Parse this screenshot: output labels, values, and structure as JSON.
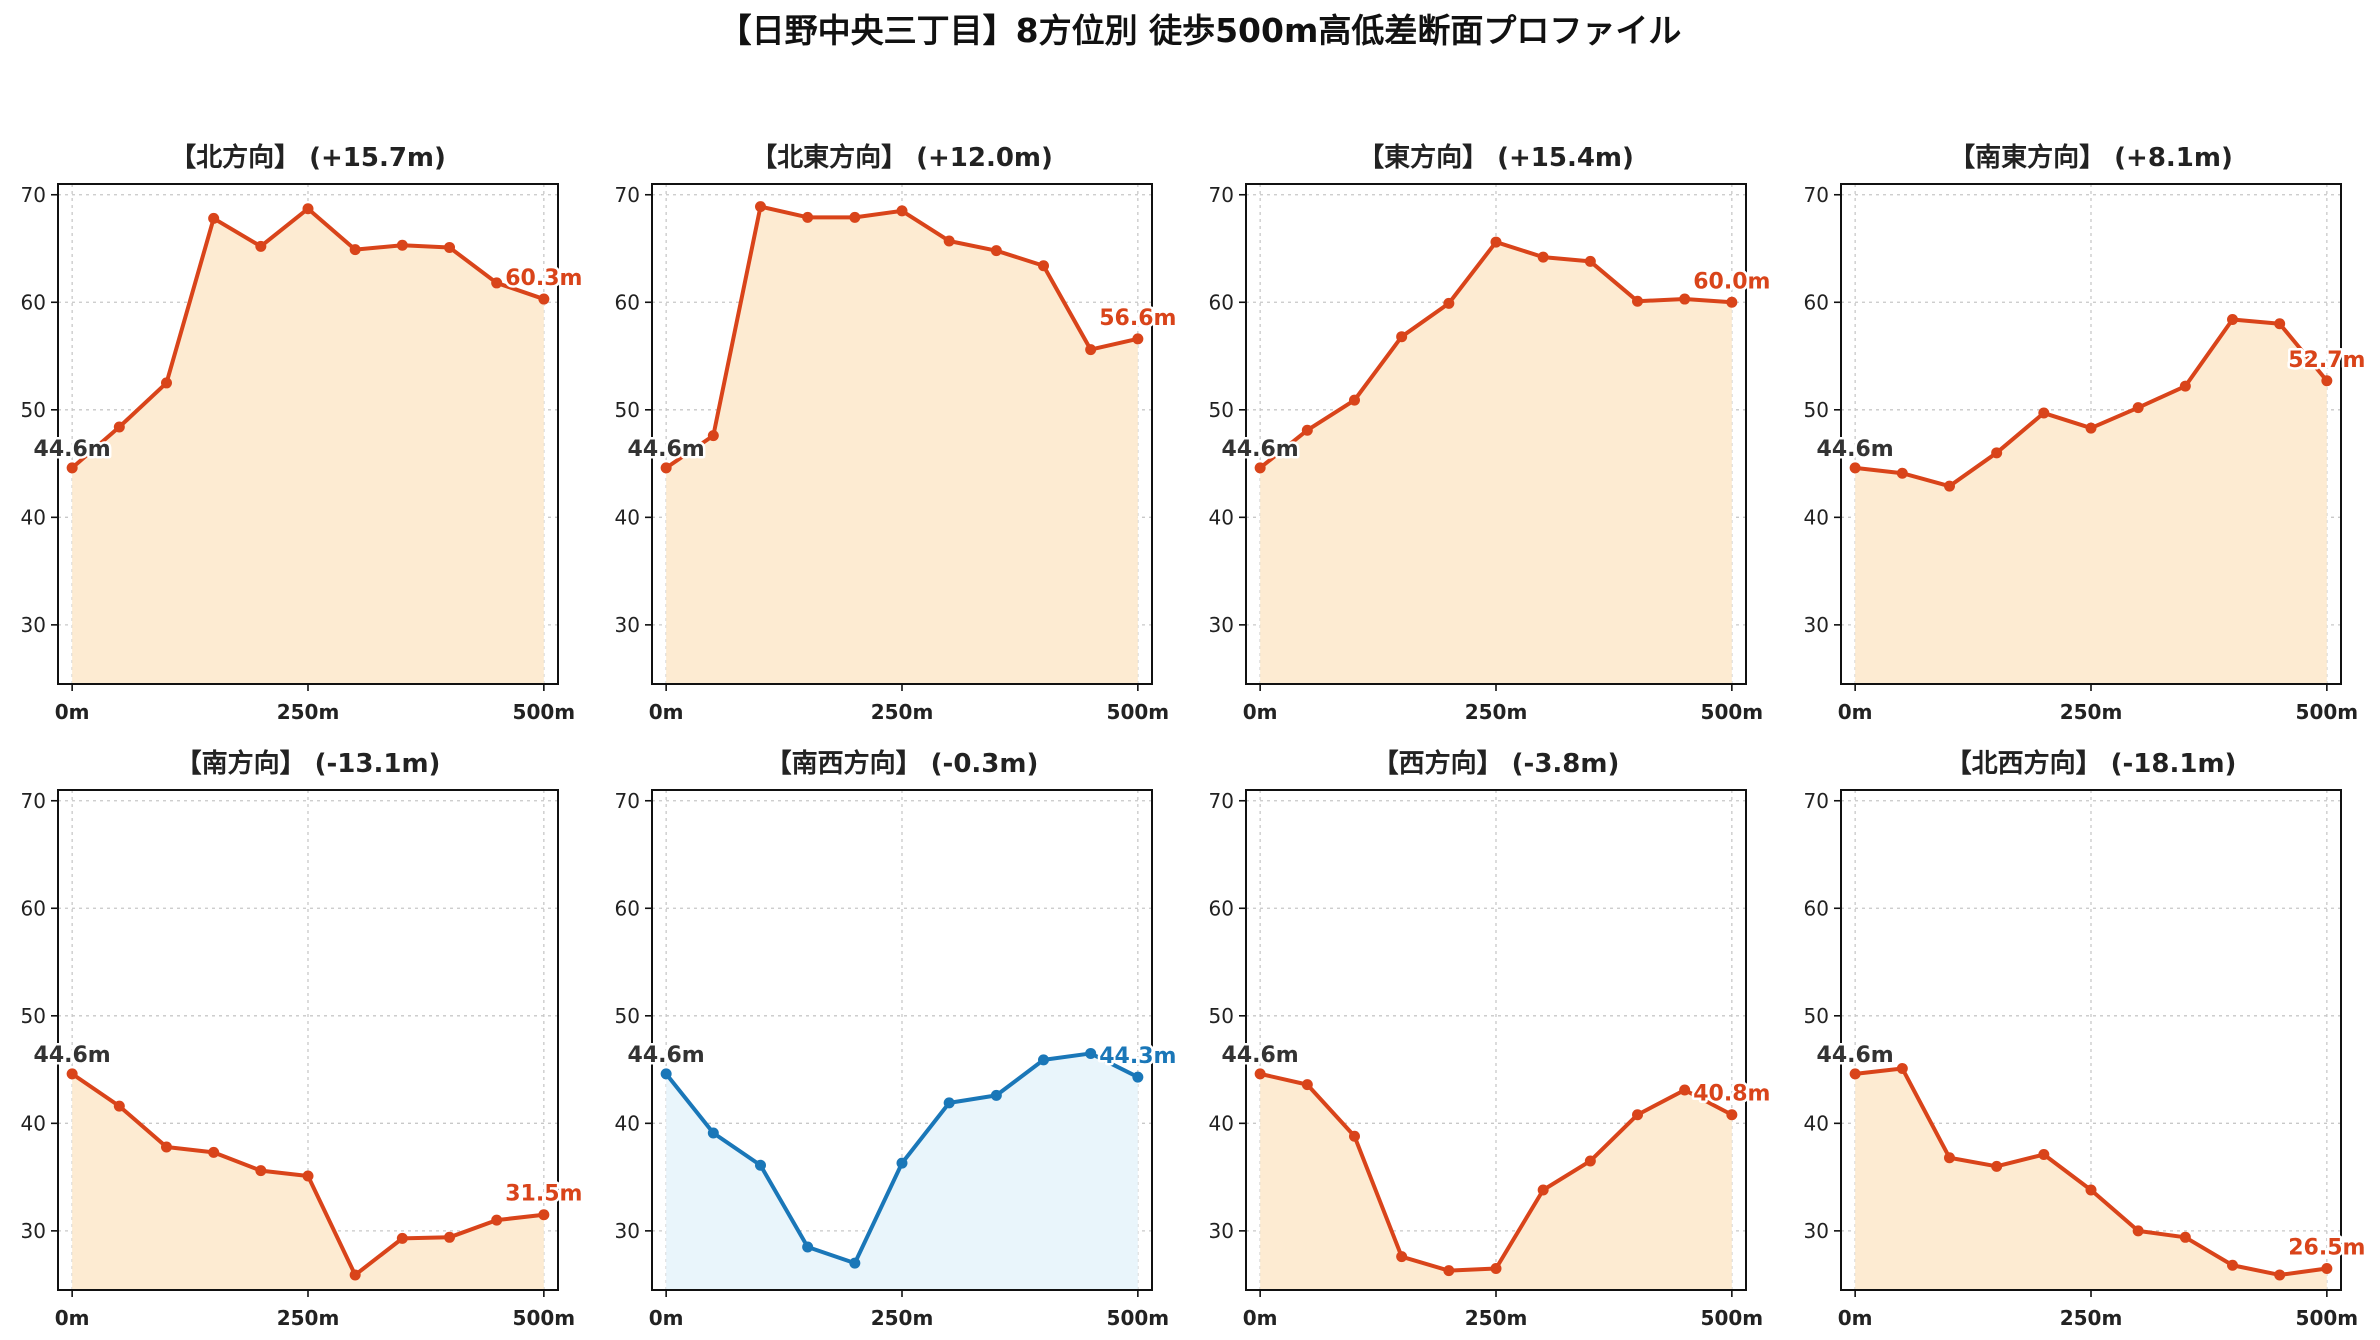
{
  "figure": {
    "title": "【日野中央三丁目】8方位別 徒歩500m高低差断面プロファイル"
  },
  "chart_data": [
    {
      "type": "line",
      "title": "【北方向】 (+15.7m)",
      "x": [
        0,
        50,
        100,
        150,
        200,
        250,
        300,
        350,
        400,
        450,
        500
      ],
      "values": [
        44.6,
        48.4,
        52.5,
        67.8,
        65.2,
        68.7,
        64.9,
        65.3,
        65.1,
        61.8,
        60.3
      ],
      "start_label": "44.6m",
      "end_label": "60.3m",
      "xticklabels": [
        "0m",
        "250m",
        "500m"
      ],
      "yticks": [
        30,
        40,
        50,
        60,
        70
      ],
      "xlim": [
        -15,
        515
      ],
      "ylim": [
        24.5,
        71
      ],
      "line_color": "#d9441a",
      "fill_color": "#fdebd2",
      "grid": true
    },
    {
      "type": "line",
      "title": "【北東方向】 (+12.0m)",
      "x": [
        0,
        50,
        100,
        150,
        200,
        250,
        300,
        350,
        400,
        450,
        500
      ],
      "values": [
        44.6,
        47.6,
        68.9,
        67.9,
        67.9,
        68.5,
        65.7,
        64.8,
        63.4,
        55.6,
        56.6
      ],
      "start_label": "44.6m",
      "end_label": "56.6m",
      "xticklabels": [
        "0m",
        "250m",
        "500m"
      ],
      "yticks": [
        30,
        40,
        50,
        60,
        70
      ],
      "xlim": [
        -15,
        515
      ],
      "ylim": [
        24.5,
        71
      ],
      "line_color": "#d9441a",
      "fill_color": "#fdebd2",
      "grid": true
    },
    {
      "type": "line",
      "title": "【東方向】 (+15.4m)",
      "x": [
        0,
        50,
        100,
        150,
        200,
        250,
        300,
        350,
        400,
        450,
        500
      ],
      "values": [
        44.6,
        48.1,
        50.9,
        56.8,
        59.9,
        65.6,
        64.2,
        63.8,
        60.1,
        60.3,
        60.0
      ],
      "start_label": "44.6m",
      "end_label": "60.0m",
      "xticklabels": [
        "0m",
        "250m",
        "500m"
      ],
      "yticks": [
        30,
        40,
        50,
        60,
        70
      ],
      "xlim": [
        -15,
        515
      ],
      "ylim": [
        24.5,
        71
      ],
      "line_color": "#d9441a",
      "fill_color": "#fdebd2",
      "grid": true
    },
    {
      "type": "line",
      "title": "【南東方向】 (+8.1m)",
      "x": [
        0,
        50,
        100,
        150,
        200,
        250,
        300,
        350,
        400,
        450,
        500
      ],
      "values": [
        44.6,
        44.1,
        42.9,
        46.0,
        49.7,
        48.3,
        50.2,
        52.2,
        58.4,
        58.0,
        52.7
      ],
      "start_label": "44.6m",
      "end_label": "52.7m",
      "xticklabels": [
        "0m",
        "250m",
        "500m"
      ],
      "yticks": [
        30,
        40,
        50,
        60,
        70
      ],
      "xlim": [
        -15,
        515
      ],
      "ylim": [
        24.5,
        71
      ],
      "line_color": "#d9441a",
      "fill_color": "#fdebd2",
      "grid": true
    },
    {
      "type": "line",
      "title": "【南方向】 (-13.1m)",
      "x": [
        0,
        50,
        100,
        150,
        200,
        250,
        300,
        350,
        400,
        450,
        500
      ],
      "values": [
        44.6,
        41.6,
        37.8,
        37.3,
        35.6,
        35.1,
        25.9,
        29.3,
        29.4,
        31.0,
        31.5
      ],
      "start_label": "44.6m",
      "end_label": "31.5m",
      "xticklabels": [
        "0m",
        "250m",
        "500m"
      ],
      "yticks": [
        30,
        40,
        50,
        60,
        70
      ],
      "xlim": [
        -15,
        515
      ],
      "ylim": [
        24.5,
        71
      ],
      "line_color": "#d9441a",
      "fill_color": "#fdebd2",
      "grid": true
    },
    {
      "type": "line",
      "title": "【南西方向】 (-0.3m)",
      "x": [
        0,
        50,
        100,
        150,
        200,
        250,
        300,
        350,
        400,
        450,
        500
      ],
      "values": [
        44.6,
        39.1,
        36.1,
        28.5,
        27.0,
        36.3,
        41.9,
        42.6,
        45.9,
        46.5,
        44.3
      ],
      "start_label": "44.6m",
      "end_label": "44.3m",
      "xticklabels": [
        "0m",
        "250m",
        "500m"
      ],
      "yticks": [
        30,
        40,
        50,
        60,
        70
      ],
      "xlim": [
        -15,
        515
      ],
      "ylim": [
        24.5,
        71
      ],
      "line_color": "#1a77b8",
      "fill_color": "#e9f5fb",
      "grid": true
    },
    {
      "type": "line",
      "title": "【西方向】 (-3.8m)",
      "x": [
        0,
        50,
        100,
        150,
        200,
        250,
        300,
        350,
        400,
        450,
        500
      ],
      "values": [
        44.6,
        43.6,
        38.8,
        27.6,
        26.3,
        26.5,
        33.8,
        36.5,
        40.8,
        43.1,
        40.8
      ],
      "start_label": "44.6m",
      "end_label": "40.8m",
      "xticklabels": [
        "0m",
        "250m",
        "500m"
      ],
      "yticks": [
        30,
        40,
        50,
        60,
        70
      ],
      "xlim": [
        -15,
        515
      ],
      "ylim": [
        24.5,
        71
      ],
      "line_color": "#d9441a",
      "fill_color": "#fdebd2",
      "grid": true
    },
    {
      "type": "line",
      "title": "【北西方向】 (-18.1m)",
      "x": [
        0,
        50,
        100,
        150,
        200,
        250,
        300,
        350,
        400,
        450,
        500
      ],
      "values": [
        44.6,
        45.1,
        36.8,
        36.0,
        37.1,
        33.8,
        30.0,
        29.4,
        26.8,
        25.9,
        26.5
      ],
      "start_label": "44.6m",
      "end_label": "26.5m",
      "xticklabels": [
        "0m",
        "250m",
        "500m"
      ],
      "yticks": [
        30,
        40,
        50,
        60,
        70
      ],
      "xlim": [
        -15,
        515
      ],
      "ylim": [
        24.5,
        71
      ],
      "line_color": "#d9441a",
      "fill_color": "#fdebd2",
      "grid": true
    }
  ]
}
